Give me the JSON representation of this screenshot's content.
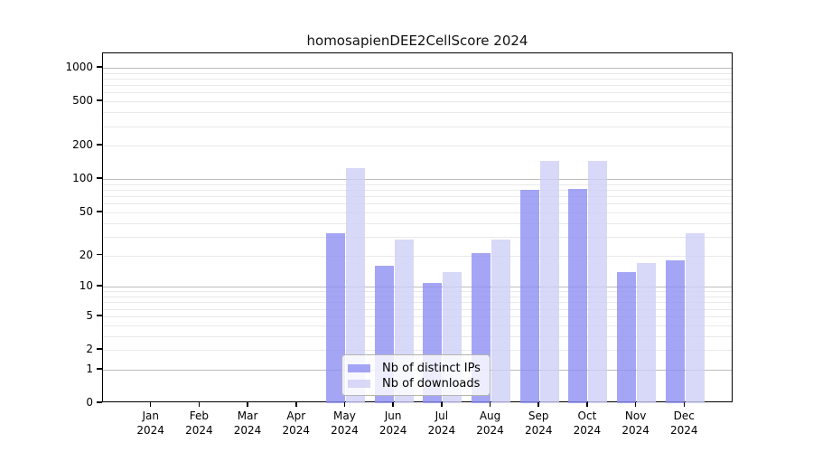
{
  "title": "homosapienDEE2CellScore 2024",
  "chart_data": {
    "type": "bar",
    "title": "homosapienDEE2CellScore 2024",
    "x_categories": [
      "Jan",
      "Feb",
      "Mar",
      "Apr",
      "May",
      "Jun",
      "Jul",
      "Aug",
      "Sep",
      "Oct",
      "Nov",
      "Dec"
    ],
    "x_year": "2024",
    "series": [
      {
        "name": "Nb of distinct IPs",
        "color": "rgba(143,143,244,0.8)",
        "values": [
          0,
          0,
          0,
          0,
          32,
          16,
          11,
          21,
          80,
          81,
          14,
          18
        ]
      },
      {
        "name": "Nb of downloads",
        "color": "rgba(206,206,246,0.8)",
        "values": [
          0,
          0,
          0,
          0,
          125,
          28,
          14,
          28,
          147,
          145,
          17,
          32
        ]
      }
    ],
    "yscale": "log1p",
    "yticks": [
      0,
      1,
      2,
      5,
      10,
      20,
      50,
      100,
      200,
      500,
      1000
    ],
    "ylim": [
      0,
      1350
    ],
    "grid": "on",
    "grid_major": [
      1,
      10,
      100,
      1000
    ],
    "legend_position": "lower center",
    "xlabel": "",
    "ylabel": ""
  },
  "style": {
    "grid_major_color": "#bdbdbd",
    "grid_minor_color": "#e9e9e9",
    "spine_color": "#000000",
    "text_color": "#000000"
  }
}
